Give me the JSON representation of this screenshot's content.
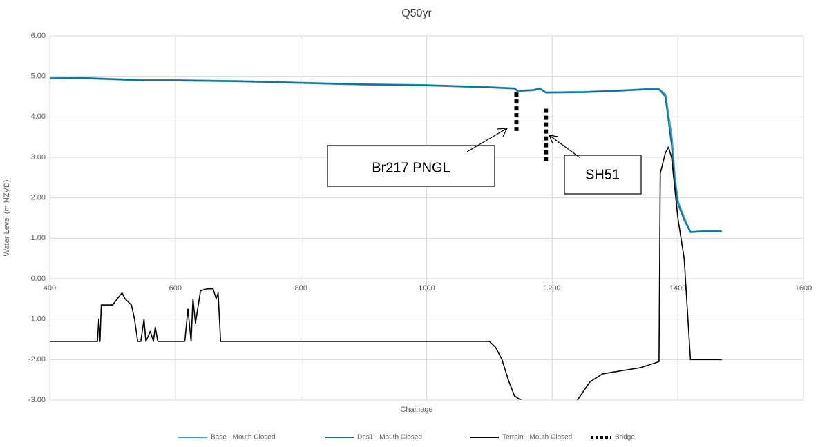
{
  "chart_data": {
    "type": "line",
    "title": "Q50yr",
    "x_label": "Chainage",
    "y_label": "Water Level (m NZVD)",
    "xlim": [
      400,
      1600
    ],
    "xticks": [
      400,
      600,
      800,
      1000,
      1200,
      1400,
      1600
    ],
    "ylim": [
      -3,
      6
    ],
    "yticks": [
      {
        "value": 6,
        "label": "6.00"
      },
      {
        "value": 5,
        "label": "5.00"
      },
      {
        "value": 4,
        "label": "4.00"
      },
      {
        "value": 3,
        "label": "3.00"
      },
      {
        "value": 2,
        "label": "2.00"
      },
      {
        "value": 1,
        "label": "1.00"
      },
      {
        "value": 0,
        "label": "0.00"
      },
      {
        "value": -1,
        "label": "-1.00"
      },
      {
        "value": -2,
        "label": "-2.00"
      },
      {
        "value": -3,
        "label": "-3.00"
      }
    ],
    "grid": true,
    "legend": "bottom",
    "annotations": [
      "Br217 PNGL",
      "SH51"
    ],
    "series": [
      {
        "name": "Base - Mouth Closed",
        "color": "#29a8e0",
        "width": 3,
        "x": [
          400,
          450,
          500,
          550,
          600,
          700,
          800,
          900,
          1000,
          1100,
          1140,
          1145,
          1170,
          1180,
          1190,
          1250,
          1300,
          1350,
          1370,
          1380,
          1390,
          1395,
          1400,
          1410,
          1420,
          1440,
          1470
        ],
        "values": [
          4.95,
          4.96,
          4.93,
          4.9,
          4.9,
          4.88,
          4.84,
          4.8,
          4.78,
          4.73,
          4.7,
          4.64,
          4.66,
          4.7,
          4.6,
          4.61,
          4.64,
          4.68,
          4.68,
          4.55,
          3.5,
          2.5,
          1.9,
          1.5,
          1.15,
          1.17,
          1.17
        ]
      },
      {
        "name": "Des1 - Mouth Closed",
        "color": "#1f6e8c",
        "width": 2,
        "x": [
          400,
          450,
          500,
          550,
          600,
          700,
          800,
          900,
          1000,
          1100,
          1140,
          1145,
          1170,
          1180,
          1190,
          1250,
          1300,
          1350,
          1370,
          1380,
          1390,
          1395,
          1400,
          1410,
          1420,
          1440,
          1470
        ],
        "values": [
          4.95,
          4.96,
          4.93,
          4.9,
          4.9,
          4.88,
          4.84,
          4.8,
          4.78,
          4.73,
          4.7,
          4.64,
          4.66,
          4.7,
          4.6,
          4.61,
          4.64,
          4.68,
          4.68,
          4.5,
          3.3,
          2.4,
          1.85,
          1.45,
          1.15,
          1.17,
          1.17
        ]
      },
      {
        "name": "Terrain - Mouth Closed",
        "color": "#000000",
        "width": 1.6,
        "x": [
          400,
          476,
          478,
          480,
          482,
          500,
          510,
          515,
          520,
          530,
          535,
          540,
          545,
          550,
          553,
          560,
          565,
          568,
          572,
          615,
          620,
          625,
          628,
          632,
          640,
          650,
          660,
          665,
          668,
          672,
          1100,
          1110,
          1120,
          1130,
          1140,
          1150,
          1195,
          1240,
          1260,
          1280,
          1300,
          1320,
          1340,
          1360,
          1370,
          1372,
          1380,
          1385,
          1390,
          1400,
          1410,
          1420,
          1470
        ],
        "values": [
          -1.55,
          -1.55,
          -1.0,
          -1.55,
          -0.65,
          -0.65,
          -0.45,
          -0.35,
          -0.5,
          -0.65,
          -1.0,
          -1.55,
          -1.55,
          -1.0,
          -1.55,
          -1.3,
          -1.55,
          -1.2,
          -1.55,
          -1.55,
          -0.75,
          -1.55,
          -0.5,
          -1.1,
          -0.3,
          -0.25,
          -0.25,
          -0.5,
          -0.35,
          -1.55,
          -1.55,
          -1.7,
          -2.0,
          -2.5,
          -2.9,
          -3.0,
          null,
          -3.0,
          -2.55,
          -2.35,
          -2.3,
          -2.25,
          -2.2,
          -2.1,
          -2.05,
          2.6,
          3.1,
          3.25,
          3.0,
          1.5,
          0.5,
          -2.0,
          -2.0
        ]
      },
      {
        "name": "Bridge",
        "color": "#000000",
        "width": 6,
        "dash": "6,4",
        "x": [
          1143,
          1143,
          1166,
          1190,
          1190
        ],
        "values": [
          4.6,
          3.65,
          null,
          4.2,
          2.9
        ]
      }
    ]
  }
}
